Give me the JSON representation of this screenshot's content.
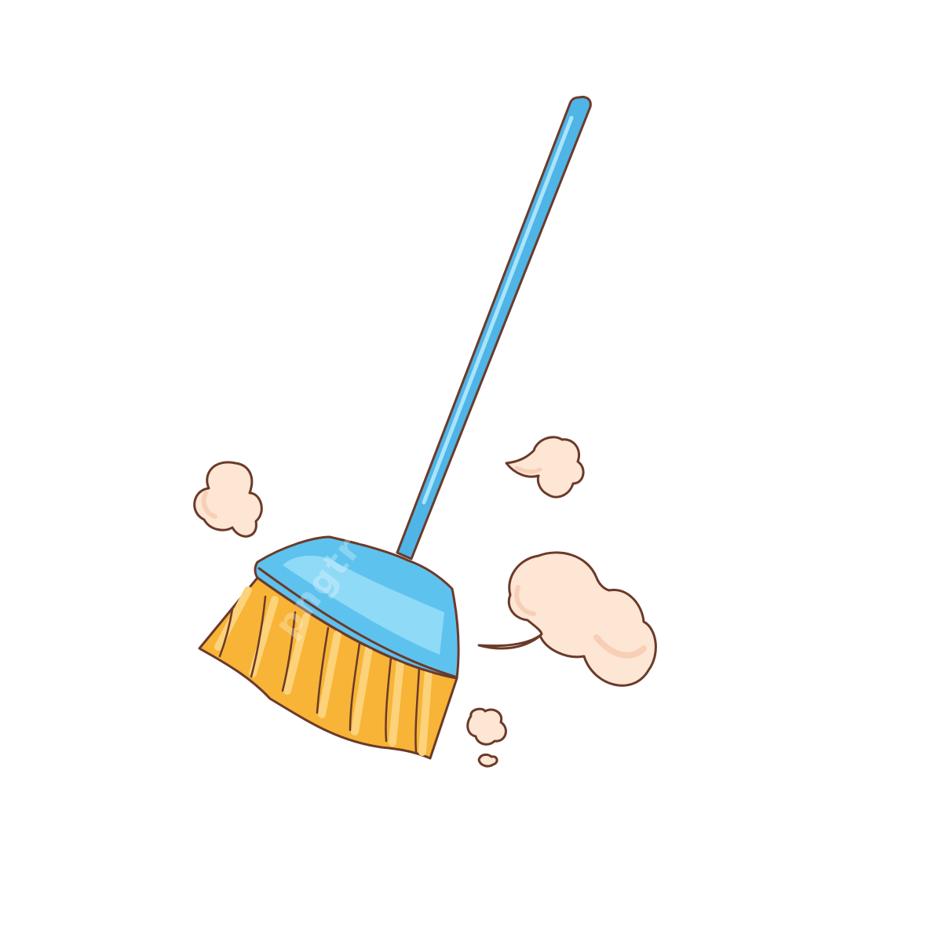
{
  "illustration": {
    "subject": "broom",
    "colors": {
      "background": "#ffffff",
      "outline": "#6b3a2a",
      "handle": "#4fb4e6",
      "handle_highlight": "#a9e4fb",
      "head": "#5ec2ee",
      "head_light": "#8fdaf7",
      "bristles": "#f7b436",
      "bristles_light": "#fcd27a",
      "dust": "#fde6d4",
      "dust_shade": "#f8cfb6"
    },
    "watermark": "pngtree"
  }
}
